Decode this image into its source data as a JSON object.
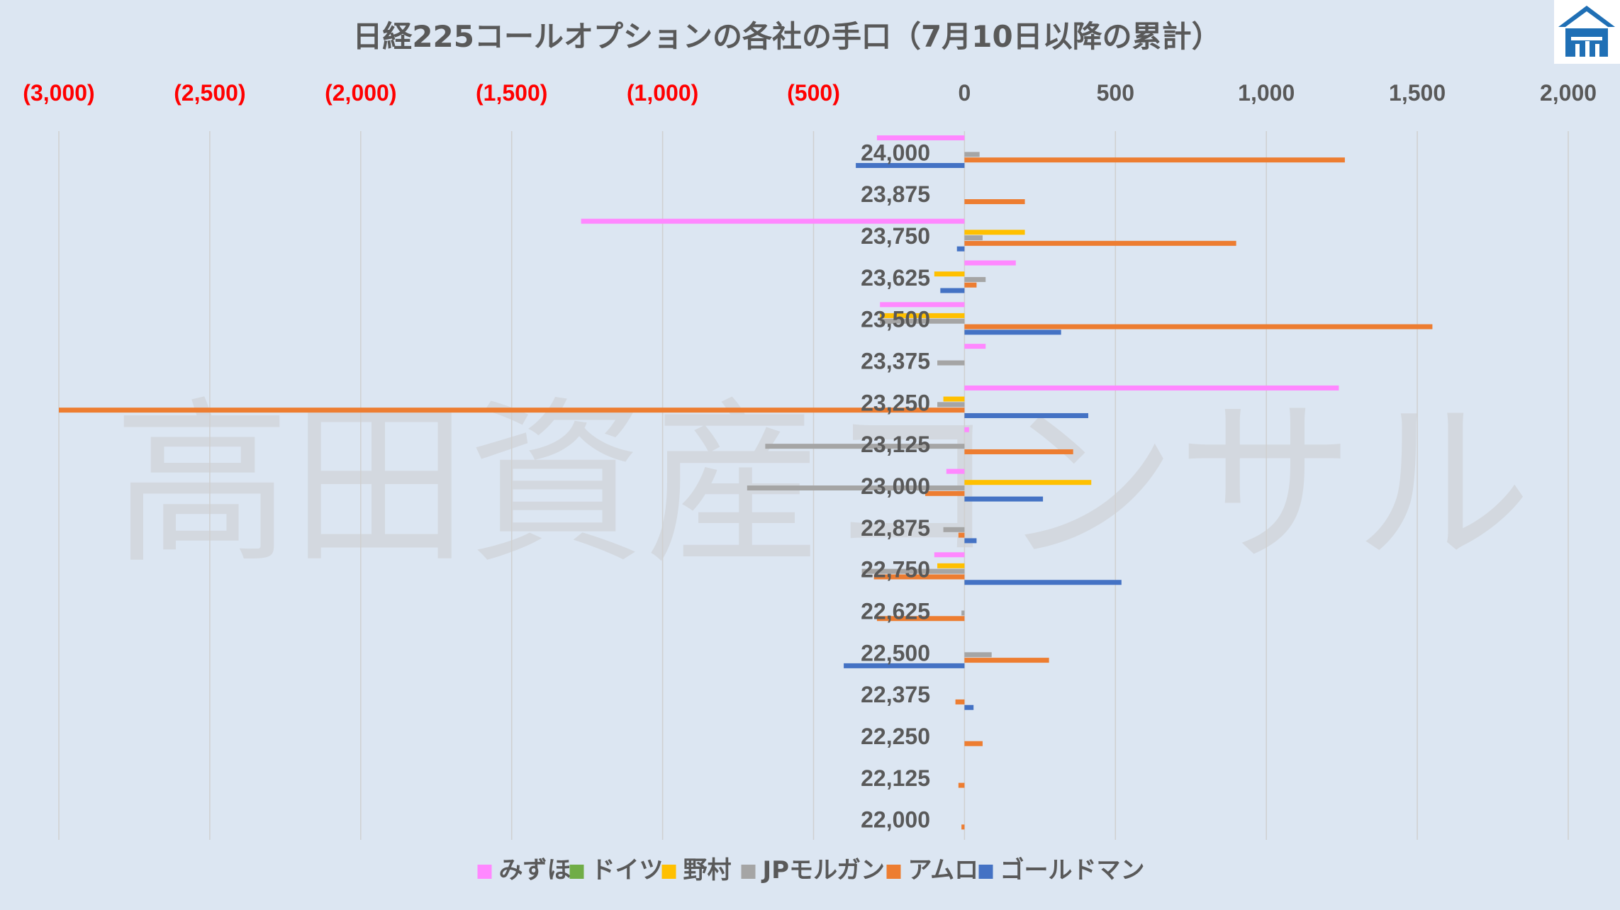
{
  "chart_data": {
    "type": "bar",
    "orientation": "horizontal",
    "title": "日経225コールオプションの各社の手口（7月10日以降の累計）",
    "watermark": "高田資産コンサル",
    "xlim": [
      -3000,
      2000
    ],
    "x_ticks": [
      -3000,
      -2500,
      -2000,
      -1500,
      -1000,
      -500,
      0,
      500,
      1000,
      1500,
      2000
    ],
    "x_tick_labels": [
      "(3,000)",
      "(2,500)",
      "(2,000)",
      "(1,500)",
      "(1,000)",
      "(500)",
      "0",
      "500",
      "1,000",
      "1,500",
      "2,000"
    ],
    "negative_tick_color": "#ff0000",
    "positive_tick_color": "#595959",
    "grid": true,
    "legend_position": "bottom",
    "categories": [
      "24,000",
      "23,875",
      "23,750",
      "23,625",
      "23,500",
      "23,375",
      "23,250",
      "23,125",
      "23,000",
      "22,875",
      "22,750",
      "22,625",
      "22,500",
      "22,375",
      "22,250",
      "22,125",
      "22,000"
    ],
    "series": [
      {
        "name": "みずほ",
        "color": "#ff88ff",
        "values": [
          -290,
          0,
          -1270,
          170,
          -280,
          70,
          1240,
          15,
          -60,
          0,
          -100,
          0,
          0,
          0,
          0,
          0,
          0
        ]
      },
      {
        "name": "ドイツ",
        "color": "#70ad47",
        "values": [
          0,
          0,
          0,
          0,
          0,
          0,
          0,
          0,
          0,
          0,
          0,
          0,
          0,
          0,
          0,
          0,
          0
        ]
      },
      {
        "name": "野村",
        "color": "#ffc000",
        "values": [
          0,
          0,
          200,
          -100,
          -280,
          0,
          -70,
          0,
          420,
          0,
          -90,
          0,
          0,
          0,
          0,
          0,
          0
        ]
      },
      {
        "name": "JPモルガン",
        "color": "#a5a5a5",
        "values": [
          50,
          0,
          60,
          70,
          -280,
          -90,
          -90,
          -660,
          -720,
          -70,
          -340,
          -10,
          90,
          0,
          0,
          0,
          0
        ]
      },
      {
        "name": "アムロ",
        "color": "#ed7d31",
        "values": [
          1260,
          200,
          900,
          40,
          1550,
          0,
          -3000,
          360,
          -130,
          -20,
          -300,
          -290,
          280,
          -30,
          60,
          -20,
          -10
        ]
      },
      {
        "name": "ゴールドマン",
        "color": "#4472c4",
        "values": [
          -360,
          0,
          -25,
          -80,
          320,
          0,
          410,
          0,
          260,
          40,
          520,
          0,
          -400,
          30,
          0,
          0,
          0
        ]
      }
    ]
  }
}
